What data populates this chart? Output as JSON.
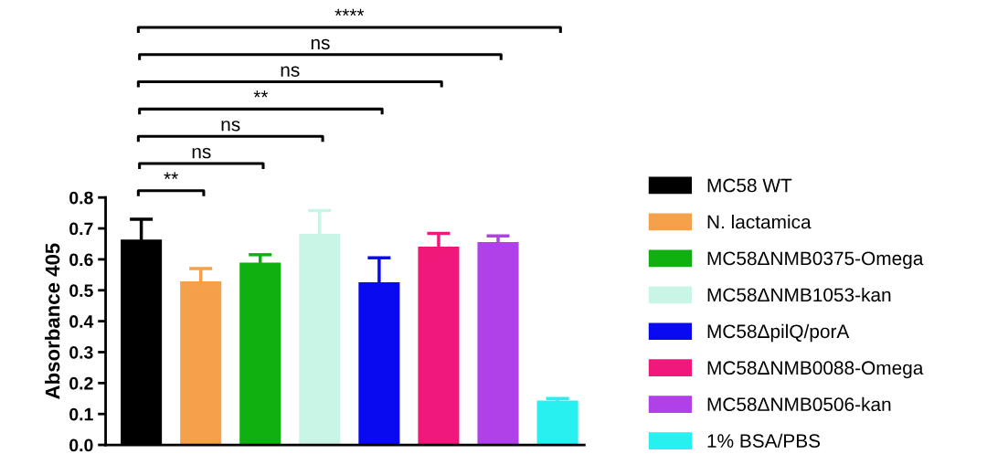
{
  "chart_data": {
    "type": "bar",
    "ylabel": "Absorbance 405",
    "categories": [
      null,
      null,
      null,
      null,
      null,
      null,
      null,
      null
    ],
    "series": [
      {
        "name": "MC58 WT",
        "color": "#000000",
        "values": [
          0.66,
          null,
          null,
          null,
          null,
          null,
          null,
          null
        ],
        "errors": [
          0.07,
          null,
          null,
          null,
          null,
          null,
          null,
          null
        ]
      },
      {
        "name": "N. lactamica",
        "color": "#f5a04a",
        "values": [
          null,
          0.525,
          null,
          null,
          null,
          null,
          null,
          null
        ],
        "errors": [
          null,
          0.045,
          null,
          null,
          null,
          null,
          null,
          null
        ]
      },
      {
        "name": "MC58ΔNMB0375-Omega",
        "color": "#10b010",
        "values": [
          null,
          null,
          0.585,
          null,
          null,
          null,
          null,
          null
        ],
        "errors": [
          null,
          null,
          0.03,
          null,
          null,
          null,
          null,
          null
        ]
      },
      {
        "name": "MC58ΔNMB1053-kan",
        "color": "#c8f5e6",
        "values": [
          null,
          null,
          null,
          0.678,
          null,
          null,
          null,
          null
        ],
        "errors": [
          null,
          null,
          null,
          0.08,
          null,
          null,
          null,
          null
        ]
      },
      {
        "name": "MC58ΔpilQ/porA",
        "color": "#0a0af0",
        "values": [
          null,
          null,
          null,
          null,
          0.522,
          null,
          null,
          null
        ],
        "errors": [
          null,
          null,
          null,
          null,
          0.083,
          null,
          null,
          null
        ]
      },
      {
        "name": "MC58ΔNMB0088-Omega",
        "color": "#f0187a",
        "values": [
          null,
          null,
          null,
          null,
          null,
          0.637,
          null,
          null
        ],
        "errors": [
          null,
          null,
          null,
          null,
          null,
          0.047,
          null,
          null
        ]
      },
      {
        "name": "MC58ΔNMB0506-kan",
        "color": "#b040e8",
        "values": [
          null,
          null,
          null,
          null,
          null,
          null,
          0.652,
          null
        ],
        "errors": [
          null,
          null,
          null,
          null,
          null,
          null,
          0.024,
          null
        ]
      },
      {
        "name": "1% BSA/PBS",
        "color": "#28f0f0",
        "values": [
          null,
          null,
          null,
          null,
          null,
          null,
          null,
          0.139
        ],
        "errors": [
          null,
          null,
          null,
          null,
          null,
          null,
          null,
          0.011
        ]
      }
    ],
    "ylim": [
      0,
      0.8
    ],
    "yticks": [
      {
        "value": 0,
        "label": "0.0"
      },
      0.1,
      0.2,
      0.3,
      0.4,
      0.5,
      0.6,
      0.7,
      0.8
    ],
    "tick_labels": "y",
    "legend": "right",
    "grid": false,
    "annotations": [
      "**",
      "ns",
      "ns",
      "**",
      "ns",
      "ns",
      "****"
    ]
  }
}
